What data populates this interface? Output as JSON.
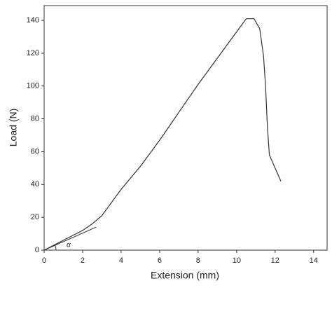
{
  "chart_data": {
    "type": "line",
    "xlabel": "Extension (mm)",
    "ylabel": "Load (N)",
    "x": [
      0,
      0.5,
      1,
      1.5,
      2,
      2.5,
      3,
      4,
      5,
      6,
      7,
      8,
      9,
      10,
      10.5,
      10.9,
      11.2,
      11.4,
      11.5,
      11.6,
      11.7,
      12,
      12.3
    ],
    "series": [
      {
        "color": "#333333",
        "values": [
          0,
          3,
          6,
          9,
          12,
          16,
          21,
          37,
          51,
          67,
          84,
          101,
          117,
          133,
          141,
          141,
          135,
          118,
          100,
          75,
          58,
          50,
          42
        ]
      }
    ],
    "tangent": {
      "x": [
        0,
        2.7
      ],
      "values": [
        0,
        14
      ],
      "label": "α"
    },
    "xlim": [
      0,
      14.7
    ],
    "ylim": [
      0,
      149
    ],
    "xticks": [
      0,
      2,
      4,
      6,
      8,
      10,
      12,
      14
    ],
    "yticks": [
      0,
      20,
      40,
      60,
      80,
      100,
      120,
      140
    ]
  }
}
